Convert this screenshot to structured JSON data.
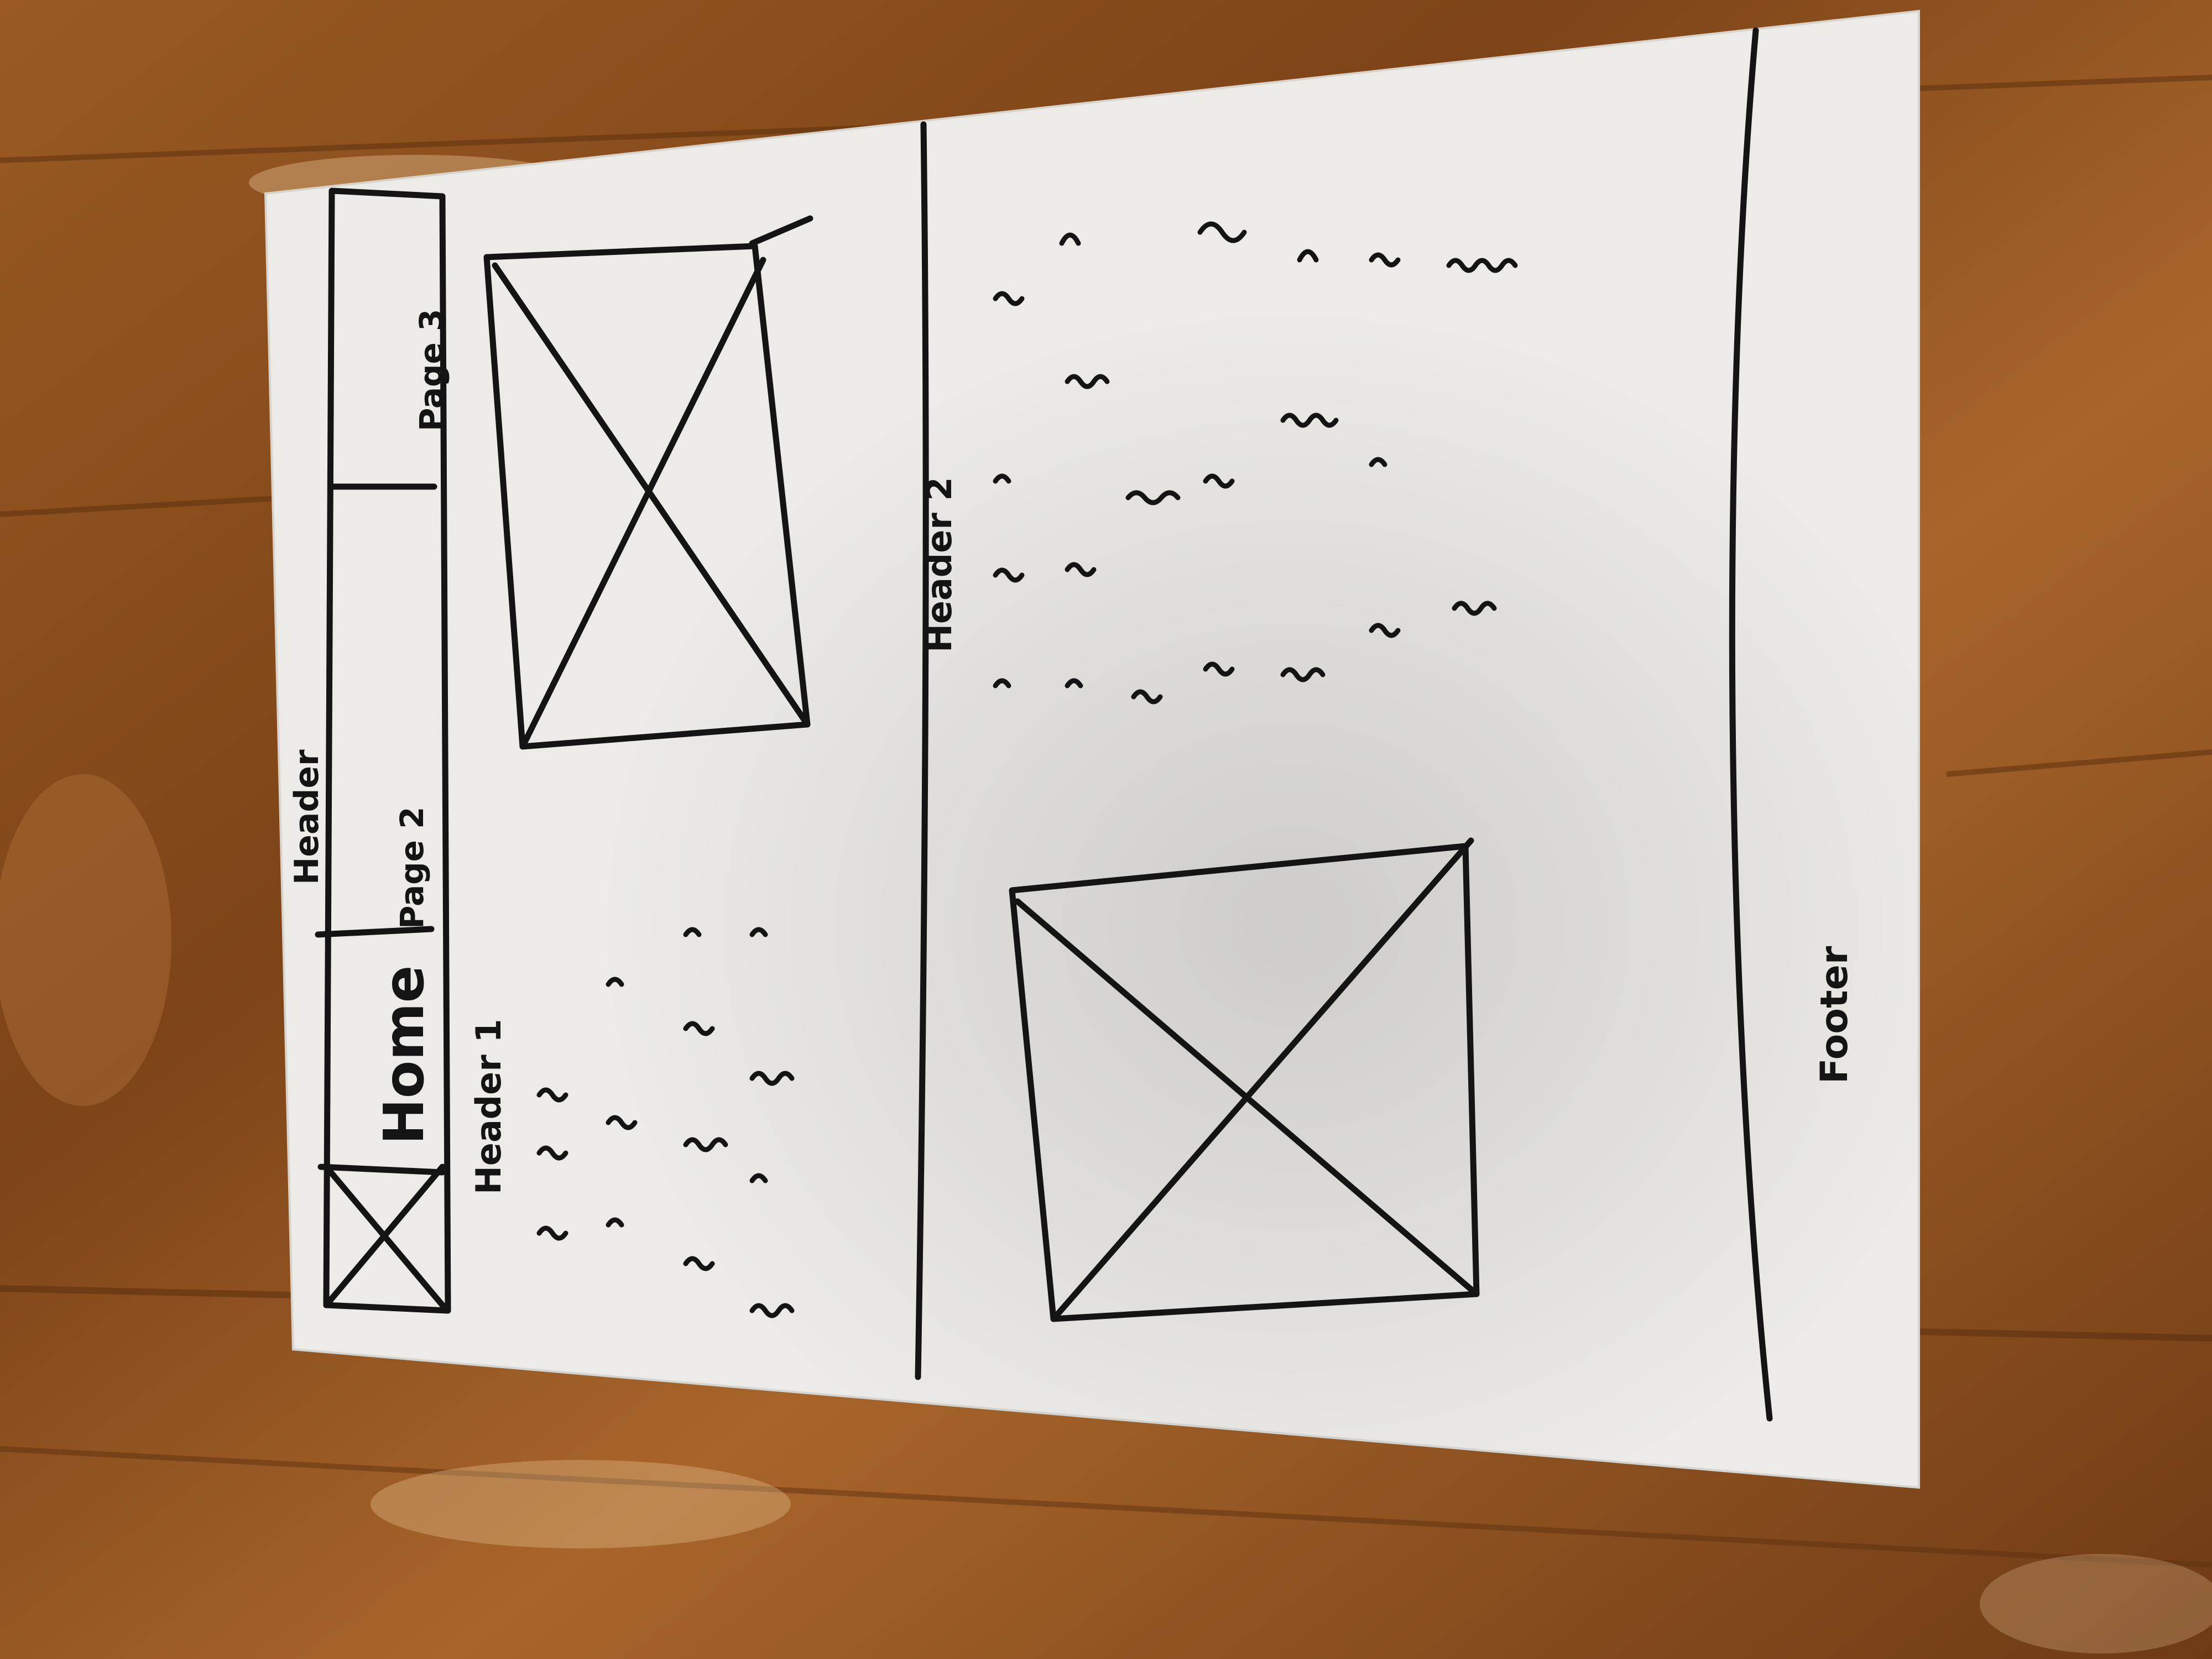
{
  "sketch": {
    "nav_label": "Header",
    "nav_tabs": [
      "Home",
      "Page 2",
      "Page 3"
    ],
    "section_1_heading": "Header 1",
    "section_2_heading": "Header 2",
    "footer_label": "Footer"
  },
  "colors": {
    "table_wood": "#8a4f1e",
    "paper": "#eceae6",
    "ink": "#141414"
  }
}
